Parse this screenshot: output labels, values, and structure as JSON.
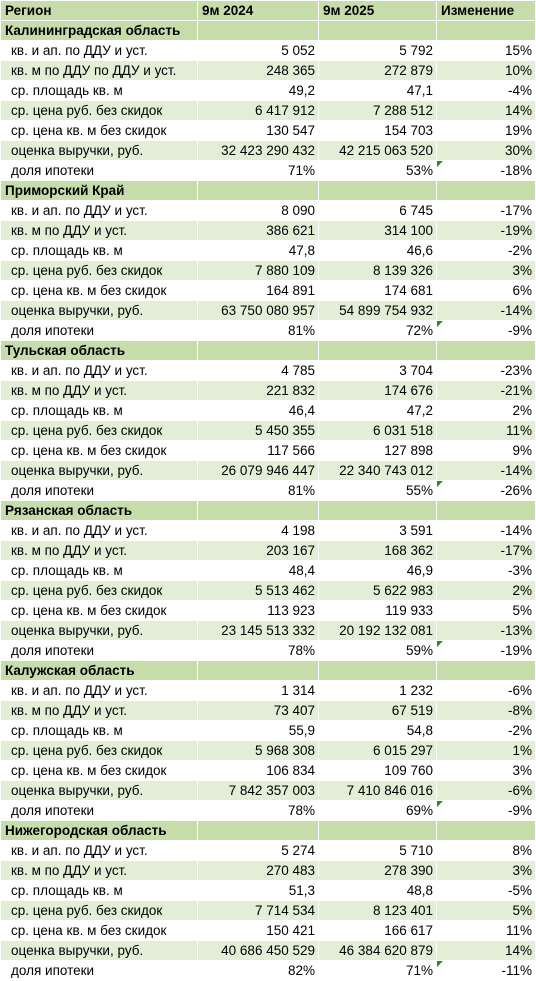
{
  "columns": [
    "Регион",
    "9м 2024",
    "9м 2025",
    "Изменение"
  ],
  "regions": [
    {
      "name": "Калининградская область",
      "rows": [
        [
          "кв. и ап. по ДДУ и уст.",
          "5 052",
          "5 792",
          "15%"
        ],
        [
          "кв. м по ДДУ по ДДУ и уст.",
          "248 365",
          "272 879",
          "10%"
        ],
        [
          "ср. площадь кв. м",
          "49,2",
          "47,1",
          "-4%"
        ],
        [
          "ср. цена руб. без скидок",
          "6 417 912",
          "7 288 512",
          "14%"
        ],
        [
          "ср. цена кв. м без скидок",
          "130 547",
          "154 703",
          "19%"
        ],
        [
          "оценка выручки, руб.",
          "32 423 290 432",
          "42 215 063 520",
          "30%"
        ],
        [
          "доля ипотеки",
          "71%",
          "53%",
          "-18%"
        ]
      ]
    },
    {
      "name": "Приморский Край",
      "rows": [
        [
          "кв. и ап. по ДДУ и уст.",
          "8 090",
          "6 745",
          "-17%"
        ],
        [
          "кв. м по ДДУ и уст.",
          "386 621",
          "314 100",
          "-19%"
        ],
        [
          "ср. площадь кв. м",
          "47,8",
          "46,6",
          "-2%"
        ],
        [
          "ср. цена руб. без скидок",
          "7 880 109",
          "8 139 326",
          "3%"
        ],
        [
          "ср. цена кв. м без скидок",
          "164 891",
          "174 681",
          "6%"
        ],
        [
          "оценка выручки, руб.",
          "63 750 080 957",
          "54 899 754 932",
          "-14%"
        ],
        [
          "доля ипотеки",
          "81%",
          "72%",
          "-9%"
        ]
      ]
    },
    {
      "name": "Тульская область",
      "rows": [
        [
          "кв. и ап. по ДДУ и уст.",
          "4 785",
          "3 704",
          "-23%"
        ],
        [
          "кв. м по ДДУ и уст.",
          "221 832",
          "174 676",
          "-21%"
        ],
        [
          "ср. площадь кв. м",
          "46,4",
          "47,2",
          "2%"
        ],
        [
          "ср. цена руб. без скидок",
          "5 450 355",
          "6 031 518",
          "11%"
        ],
        [
          "ср. цена кв. м без скидок",
          "117 566",
          "127 898",
          "9%"
        ],
        [
          "оценка выручки, руб.",
          "26 079 946 447",
          "22 340 743 012",
          "-14%"
        ],
        [
          "доля ипотеки",
          "81%",
          "55%",
          "-26%"
        ]
      ]
    },
    {
      "name": "Рязанская область",
      "rows": [
        [
          "кв. и ап. по ДДУ и уст.",
          "4 198",
          "3 591",
          "-14%"
        ],
        [
          "кв. м по ДДУ и уст.",
          "203 167",
          "168 362",
          "-17%"
        ],
        [
          "ср. площадь кв. м",
          "48,4",
          "46,9",
          "-3%"
        ],
        [
          "ср. цена руб. без скидок",
          "5 513 462",
          "5 622 983",
          "2%"
        ],
        [
          "ср. цена кв. м без скидок",
          "113 923",
          "119 933",
          "5%"
        ],
        [
          "оценка выручки, руб.",
          "23 145 513 332",
          "20 192 132 081",
          "-13%"
        ],
        [
          "доля ипотеки",
          "78%",
          "59%",
          "-19%"
        ]
      ]
    },
    {
      "name": "Калужская область",
      "rows": [
        [
          "кв. и ап. по ДДУ и уст.",
          "1 314",
          "1 232",
          "-6%"
        ],
        [
          "кв. м по ДДУ и уст.",
          "73 407",
          "67 519",
          "-8%"
        ],
        [
          "ср. площадь кв. м",
          "55,9",
          "54,8",
          "-2%"
        ],
        [
          "ср. цена руб. без скидок",
          "5 968 308",
          "6 015 297",
          "1%"
        ],
        [
          "ср. цена кв. м без скидок",
          "106 834",
          "109 760",
          "3%"
        ],
        [
          "оценка выручки, руб.",
          "7 842 357 003",
          "7 410 846 016",
          "-6%"
        ],
        [
          "доля ипотеки",
          "78%",
          "69%",
          "-9%"
        ]
      ]
    },
    {
      "name": "Нижегородская область",
      "rows": [
        [
          "кв. и ап. по ДДУ и уст.",
          "5 274",
          "5 710",
          "8%"
        ],
        [
          "кв. м по ДДУ и уст.",
          "270 483",
          "278 390",
          "3%"
        ],
        [
          "ср. площадь кв. м",
          "51,3",
          "48,8",
          "-5%"
        ],
        [
          "ср. цена руб. без скидок",
          "7 714 534",
          "8 123 401",
          "5%"
        ],
        [
          "ср. цена кв. м без скидок",
          "150 421",
          "166 617",
          "11%"
        ],
        [
          "оценка выручки, руб.",
          "40 686 450 529",
          "46 384 620 879",
          "14%"
        ],
        [
          "доля ипотеки",
          "82%",
          "71%",
          "-11%"
        ]
      ]
    }
  ]
}
